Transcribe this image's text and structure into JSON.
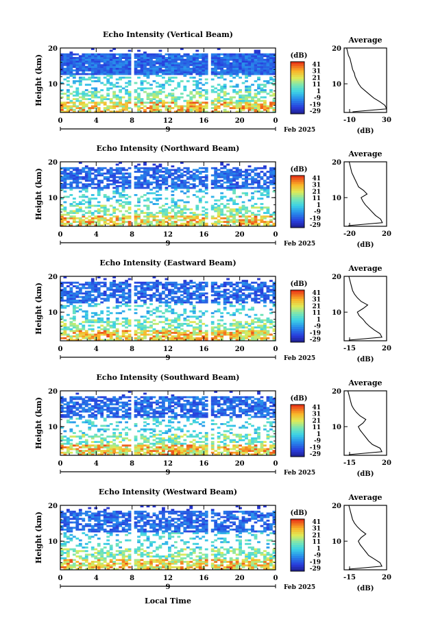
{
  "page": {
    "xlabel": "Local Time",
    "month_label": "Feb 2025",
    "day_label": "9",
    "ylabel": "Height (km)",
    "colorbar_unit": "(dB)",
    "colorbar_ticks": [
      "41",
      "31",
      "21",
      "11",
      "1",
      "-9",
      "-19",
      "-29"
    ],
    "average_title": "Average",
    "average_xlabel": "(dB)"
  },
  "chart_data": [
    {
      "type": "heatmap",
      "title": "Echo Intensity (Vertical Beam)",
      "x_ticks": [
        "0",
        "4",
        "8",
        "12",
        "16",
        "20",
        "0"
      ],
      "y_ticks": [
        "20",
        "10"
      ],
      "xlim": [
        0,
        24
      ],
      "ylim": [
        2,
        20
      ],
      "colorbar": {
        "min": -29,
        "max": 41,
        "unit": "dB"
      },
      "avg_profile": {
        "title": "Average",
        "x_ticks": [
          "-10",
          "30"
        ],
        "y_ticks": [
          "20",
          "10"
        ],
        "xlim": [
          -20,
          30
        ],
        "points": [
          [
            -10,
            2.2
          ],
          [
            30,
            3
          ],
          [
            28,
            4
          ],
          [
            22,
            5
          ],
          [
            15,
            6
          ],
          [
            10,
            7
          ],
          [
            5,
            8
          ],
          [
            0,
            9
          ],
          [
            -3,
            10
          ],
          [
            -5,
            11
          ],
          [
            -7,
            12
          ],
          [
            -8,
            13
          ],
          [
            -10,
            14
          ],
          [
            -11,
            15
          ],
          [
            -12,
            16
          ],
          [
            -13,
            17
          ],
          [
            -15,
            18
          ],
          [
            -16,
            19
          ],
          [
            -17,
            20
          ]
        ]
      }
    },
    {
      "type": "heatmap",
      "title": "Echo Intensity (Northward Beam)",
      "x_ticks": [
        "0",
        "4",
        "8",
        "12",
        "16",
        "20",
        "0"
      ],
      "y_ticks": [
        "20",
        "10"
      ],
      "xlim": [
        0,
        24
      ],
      "ylim": [
        2,
        20
      ],
      "colorbar": {
        "min": -29,
        "max": 41,
        "unit": "dB"
      },
      "avg_profile": {
        "title": "Average",
        "x_ticks": [
          "-20",
          "20"
        ],
        "y_ticks": [
          "20",
          "10"
        ],
        "xlim": [
          -25,
          25
        ],
        "points": [
          [
            -20,
            2.2
          ],
          [
            20,
            3
          ],
          [
            18,
            4
          ],
          [
            12,
            5
          ],
          [
            8,
            6
          ],
          [
            4,
            7
          ],
          [
            0,
            8
          ],
          [
            -3,
            9
          ],
          [
            -5,
            10
          ],
          [
            2,
            11
          ],
          [
            -2,
            12
          ],
          [
            -8,
            13
          ],
          [
            -10,
            14
          ],
          [
            -12,
            15
          ],
          [
            -14,
            16
          ],
          [
            -16,
            17
          ],
          [
            -17,
            18
          ],
          [
            -18,
            19
          ],
          [
            -19,
            20
          ]
        ]
      }
    },
    {
      "type": "heatmap",
      "title": "Echo Intensity (Eastward Beam)",
      "x_ticks": [
        "0",
        "4",
        "8",
        "12",
        "16",
        "20",
        "0"
      ],
      "y_ticks": [
        "20",
        "10"
      ],
      "xlim": [
        0,
        24
      ],
      "ylim": [
        2,
        20
      ],
      "colorbar": {
        "min": -29,
        "max": 41,
        "unit": "dB"
      },
      "avg_profile": {
        "title": "Average",
        "x_ticks": [
          "-15",
          "20"
        ],
        "y_ticks": [
          "20",
          "10"
        ],
        "xlim": [
          -20,
          25
        ],
        "points": [
          [
            -15,
            2.2
          ],
          [
            20,
            3
          ],
          [
            18,
            4
          ],
          [
            12,
            5
          ],
          [
            7,
            6
          ],
          [
            3,
            7
          ],
          [
            0,
            8
          ],
          [
            -4,
            9
          ],
          [
            -6,
            10
          ],
          [
            0,
            11
          ],
          [
            5,
            12
          ],
          [
            -2,
            13
          ],
          [
            -6,
            14
          ],
          [
            -9,
            15
          ],
          [
            -11,
            16
          ],
          [
            -12,
            17
          ],
          [
            -13,
            18
          ],
          [
            -14,
            19
          ],
          [
            -15,
            20
          ]
        ]
      }
    },
    {
      "type": "heatmap",
      "title": "Echo Intensity (Southward Beam)",
      "x_ticks": [
        "0",
        "4",
        "8",
        "12",
        "16",
        "20",
        "0"
      ],
      "y_ticks": [
        "20",
        "10"
      ],
      "xlim": [
        0,
        24
      ],
      "ylim": [
        2,
        20
      ],
      "colorbar": {
        "min": -29,
        "max": 41,
        "unit": "dB"
      },
      "avg_profile": {
        "title": "Average",
        "x_ticks": [
          "-15",
          "20"
        ],
        "y_ticks": [
          "20",
          "10"
        ],
        "xlim": [
          -20,
          25
        ],
        "points": [
          [
            -15,
            2.2
          ],
          [
            20,
            3
          ],
          [
            18,
            4
          ],
          [
            10,
            5
          ],
          [
            6,
            6
          ],
          [
            3,
            7
          ],
          [
            0,
            8
          ],
          [
            -3,
            9
          ],
          [
            -5,
            10
          ],
          [
            0,
            11
          ],
          [
            3,
            12
          ],
          [
            -3,
            13
          ],
          [
            -7,
            14
          ],
          [
            -10,
            15
          ],
          [
            -12,
            16
          ],
          [
            -13,
            17
          ],
          [
            -14,
            18
          ],
          [
            -15,
            19
          ],
          [
            -16,
            20
          ]
        ]
      }
    },
    {
      "type": "heatmap",
      "title": "Echo Intensity (Westward Beam)",
      "x_ticks": [
        "0",
        "4",
        "8",
        "12",
        "16",
        "20",
        "0"
      ],
      "y_ticks": [
        "20",
        "10"
      ],
      "xlim": [
        0,
        24
      ],
      "ylim": [
        2,
        20
      ],
      "colorbar": {
        "min": -29,
        "max": 41,
        "unit": "dB"
      },
      "avg_profile": {
        "title": "Average",
        "x_ticks": [
          "-15",
          "20"
        ],
        "y_ticks": [
          "20",
          "10"
        ],
        "xlim": [
          -20,
          25
        ],
        "points": [
          [
            -15,
            2.2
          ],
          [
            20,
            3
          ],
          [
            18,
            4
          ],
          [
            12,
            5
          ],
          [
            6,
            6
          ],
          [
            3,
            7
          ],
          [
            0,
            8
          ],
          [
            -3,
            9
          ],
          [
            -5,
            10
          ],
          [
            -2,
            11
          ],
          [
            3,
            12
          ],
          [
            -2,
            13
          ],
          [
            -6,
            14
          ],
          [
            -9,
            15
          ],
          [
            -11,
            16
          ],
          [
            -12,
            17
          ],
          [
            -13,
            18
          ],
          [
            -14,
            19
          ],
          [
            -15,
            20
          ]
        ]
      }
    }
  ]
}
